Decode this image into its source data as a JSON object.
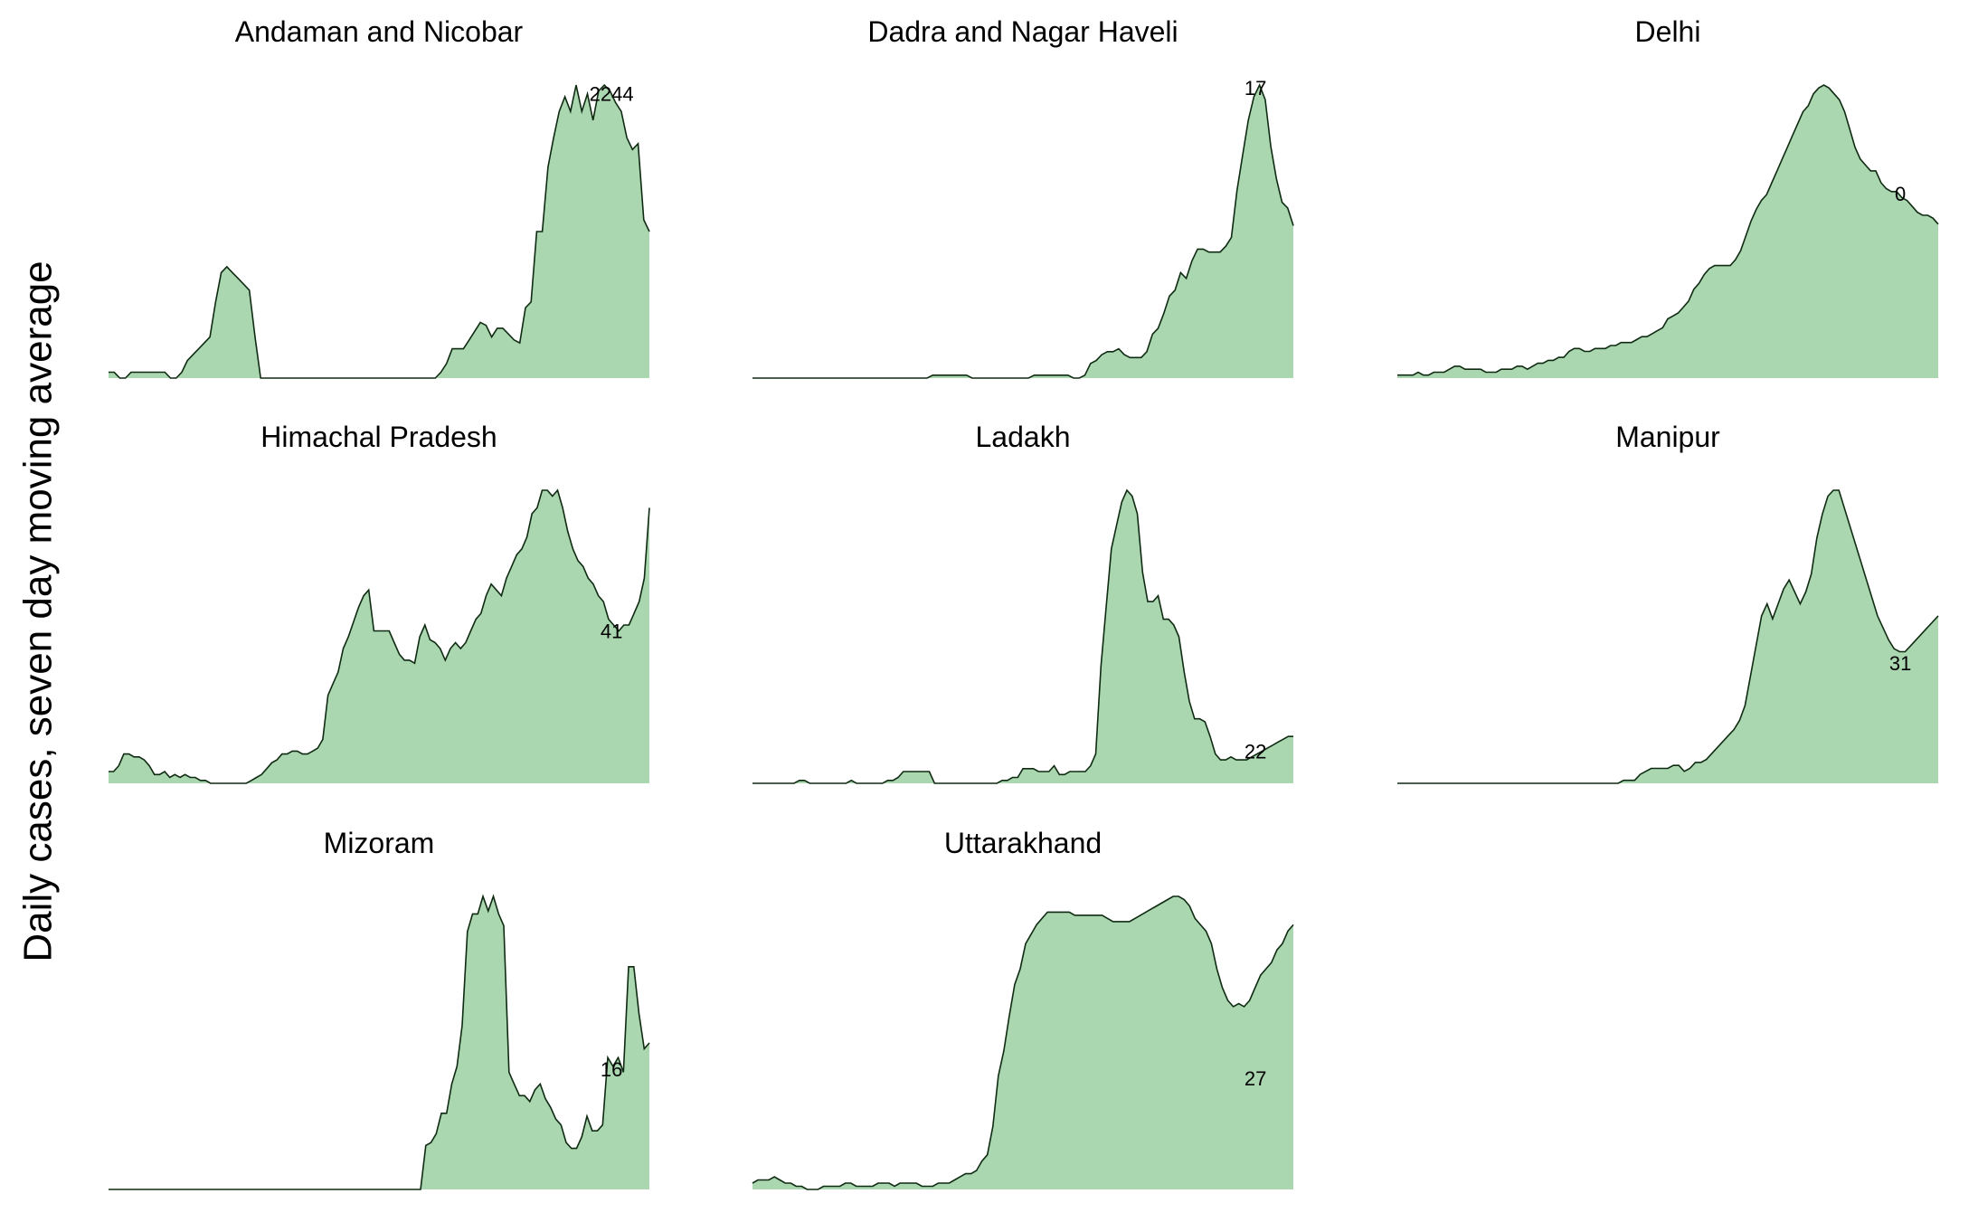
{
  "chart_data": {
    "type": "area",
    "ylabel": "Daily cases, seven day moving average",
    "fill_color": "#aad6b0",
    "line_color": "#0f2b12",
    "panels": [
      {
        "title": "Andaman and Nicobar",
        "label": "2244",
        "values": [
          2,
          2,
          0,
          0,
          2,
          2,
          2,
          2,
          2,
          2,
          2,
          0,
          0,
          2,
          6,
          8,
          10,
          12,
          14,
          26,
          36,
          38,
          36,
          34,
          32,
          30,
          14,
          0,
          0,
          0,
          0,
          0,
          0,
          0,
          0,
          0,
          0,
          0,
          0,
          0,
          0,
          0,
          0,
          0,
          0,
          0,
          0,
          0,
          0,
          0,
          0,
          0,
          0,
          0,
          0,
          0,
          0,
          0,
          0,
          2,
          5,
          10,
          10,
          10,
          13,
          16,
          19,
          18,
          14,
          17,
          17,
          15,
          13,
          12,
          24,
          26,
          50,
          50,
          72,
          82,
          91,
          96,
          91,
          100,
          91,
          97,
          88,
          98,
          100,
          98,
          94,
          91,
          82,
          78,
          80,
          54,
          50
        ]
      },
      {
        "title": "Dadra and Nagar Haveli",
        "label": "17",
        "values": [
          0,
          0,
          0,
          0,
          0,
          0,
          0,
          0,
          0,
          0,
          0,
          0,
          0,
          0,
          0,
          0,
          0,
          0,
          0,
          0,
          0,
          0,
          0,
          0,
          0,
          0,
          0,
          0,
          0,
          0,
          0,
          0,
          1,
          1,
          1,
          1,
          1,
          1,
          1,
          0,
          0,
          0,
          0,
          0,
          0,
          0,
          0,
          0,
          0,
          0,
          1,
          1,
          1,
          1,
          1,
          1,
          1,
          0,
          0,
          1,
          5,
          6,
          8,
          9,
          9,
          10,
          8,
          7,
          7,
          7,
          9,
          15,
          17,
          22,
          28,
          30,
          36,
          34,
          40,
          44,
          44,
          43,
          43,
          43,
          45,
          48,
          64,
          76,
          88,
          96,
          100,
          95,
          79,
          68,
          60,
          58,
          52
        ]
      },
      {
        "title": "Delhi",
        "label": "0",
        "values": [
          1,
          1,
          1,
          1,
          2,
          1,
          1,
          2,
          2,
          2,
          3,
          4,
          4,
          3,
          3,
          3,
          3,
          2,
          2,
          2,
          3,
          3,
          3,
          4,
          4,
          3,
          4,
          5,
          5,
          6,
          6,
          7,
          7,
          9,
          10,
          10,
          9,
          9,
          10,
          10,
          10,
          11,
          11,
          12,
          12,
          12,
          13,
          14,
          14,
          15,
          16,
          17,
          20,
          21,
          22,
          24,
          26,
          30,
          32,
          35,
          37,
          38,
          38,
          38,
          38,
          40,
          43,
          48,
          53,
          57,
          60,
          62,
          66,
          70,
          74,
          78,
          82,
          86,
          90,
          92,
          96,
          98,
          99,
          98,
          96,
          94,
          90,
          84,
          78,
          74,
          72,
          70,
          70,
          66,
          64,
          63,
          63,
          61,
          60,
          58,
          56,
          55,
          55,
          54,
          52
        ]
      },
      {
        "title": "Himachal Pradesh",
        "label": "41",
        "values": [
          4,
          4,
          6,
          10,
          10,
          9,
          9,
          8,
          6,
          3,
          3,
          4,
          2,
          3,
          2,
          3,
          2,
          2,
          1,
          1,
          0,
          0,
          0,
          0,
          0,
          0,
          0,
          0,
          1,
          2,
          3,
          5,
          7,
          8,
          10,
          10,
          11,
          11,
          10,
          10,
          11,
          12,
          15,
          30,
          34,
          38,
          46,
          50,
          55,
          60,
          64,
          66,
          52,
          52,
          52,
          52,
          48,
          44,
          42,
          42,
          41,
          50,
          54,
          49,
          48,
          46,
          42,
          46,
          48,
          46,
          48,
          52,
          56,
          58,
          64,
          68,
          66,
          64,
          70,
          74,
          78,
          80,
          84,
          92,
          94,
          100,
          100,
          98,
          100,
          94,
          86,
          80,
          76,
          74,
          70,
          68,
          64,
          62,
          56,
          54,
          52,
          54,
          54,
          58,
          62,
          70,
          94
        ]
      },
      {
        "title": "Ladakh",
        "label": "22",
        "values": [
          0,
          0,
          0,
          0,
          0,
          0,
          0,
          0,
          0,
          1,
          1,
          0,
          0,
          0,
          0,
          0,
          0,
          0,
          0,
          1,
          0,
          0,
          0,
          0,
          0,
          0,
          1,
          1,
          2,
          4,
          4,
          4,
          4,
          4,
          4,
          0,
          0,
          0,
          0,
          0,
          0,
          0,
          0,
          0,
          0,
          0,
          0,
          0,
          1,
          1,
          2,
          2,
          5,
          5,
          5,
          4,
          4,
          4,
          6,
          3,
          3,
          4,
          4,
          4,
          4,
          6,
          10,
          40,
          60,
          80,
          88,
          96,
          100,
          98,
          92,
          72,
          62,
          62,
          64,
          56,
          56,
          54,
          50,
          38,
          28,
          22,
          22,
          21,
          16,
          10,
          8,
          8,
          9,
          8,
          8,
          8,
          9,
          10,
          11,
          12,
          13,
          14,
          15,
          16,
          16
        ]
      },
      {
        "title": "Manipur",
        "label": "31",
        "values": [
          0,
          0,
          0,
          0,
          0,
          0,
          0,
          0,
          0,
          0,
          0,
          0,
          0,
          0,
          0,
          0,
          0,
          0,
          0,
          0,
          0,
          0,
          0,
          0,
          0,
          0,
          0,
          0,
          0,
          0,
          0,
          0,
          0,
          0,
          0,
          0,
          0,
          0,
          0,
          0,
          0,
          1,
          1,
          1,
          3,
          4,
          5,
          5,
          5,
          5,
          6,
          6,
          4,
          5,
          7,
          7,
          8,
          10,
          12,
          14,
          16,
          18,
          21,
          26,
          36,
          46,
          56,
          60,
          55,
          60,
          65,
          68,
          64,
          60,
          64,
          70,
          82,
          90,
          96,
          98,
          98,
          92,
          86,
          80,
          74,
          68,
          62,
          56,
          52,
          48,
          45,
          44,
          44,
          46,
          48,
          50,
          52,
          54,
          56
        ]
      },
      {
        "title": "Mizoram",
        "label": "16",
        "values": [
          0,
          0,
          0,
          0,
          0,
          0,
          0,
          0,
          0,
          0,
          0,
          0,
          0,
          0,
          0,
          0,
          0,
          0,
          0,
          0,
          0,
          0,
          0,
          0,
          0,
          0,
          0,
          0,
          0,
          0,
          0,
          0,
          0,
          0,
          0,
          0,
          0,
          0,
          0,
          0,
          0,
          0,
          0,
          0,
          0,
          0,
          0,
          0,
          0,
          0,
          0,
          0,
          0,
          0,
          0,
          0,
          0,
          0,
          0,
          0,
          0,
          15,
          16,
          19,
          26,
          26,
          36,
          42,
          56,
          88,
          94,
          94,
          100,
          95,
          100,
          94,
          90,
          40,
          36,
          32,
          32,
          30,
          34,
          36,
          31,
          28,
          24,
          22,
          16,
          14,
          14,
          18,
          25,
          20,
          20,
          22,
          45,
          42,
          45,
          40,
          76,
          76,
          60,
          48,
          50
        ]
      },
      {
        "title": "Uttarakhand",
        "label": "27",
        "values": [
          2,
          3,
          3,
          3,
          4,
          3,
          2,
          2,
          1,
          1,
          0,
          0,
          0,
          1,
          1,
          1,
          1,
          2,
          2,
          1,
          1,
          1,
          1,
          2,
          2,
          2,
          1,
          2,
          2,
          2,
          2,
          1,
          1,
          1,
          2,
          2,
          2,
          3,
          4,
          5,
          5,
          6,
          9,
          11,
          20,
          36,
          44,
          55,
          65,
          70,
          78,
          81,
          84,
          86,
          88,
          88,
          88,
          88,
          88,
          87,
          87,
          87,
          87,
          87,
          87,
          86,
          85,
          85,
          85,
          85,
          86,
          87,
          88,
          89,
          90,
          91,
          92,
          93,
          93,
          92,
          90,
          86,
          84,
          82,
          78,
          70,
          64,
          60,
          58,
          59,
          58,
          60,
          64,
          68,
          70,
          72,
          76,
          78,
          82,
          84
        ]
      }
    ]
  }
}
